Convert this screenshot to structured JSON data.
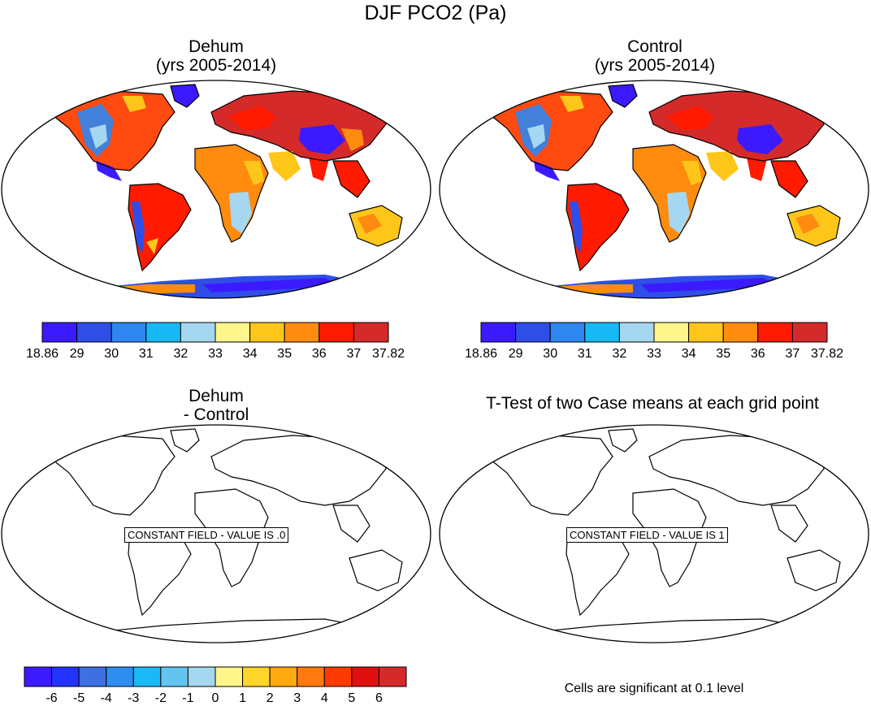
{
  "title": "DJF PCO2 (Pa)",
  "panels": [
    {
      "id": "dehum",
      "title_line1": "Dehum",
      "title_line2": "(yrs 2005-2014)"
    },
    {
      "id": "control",
      "title_line1": "Control",
      "title_line2": "(yrs 2005-2014)"
    },
    {
      "id": "difference",
      "title_line1": "Dehum",
      "title_line2": "- Control",
      "overlay": "CONSTANT FIELD - VALUE IS .0"
    },
    {
      "id": "ttest",
      "title_line1": "T-Test of two Case means at each grid point",
      "overlay": "CONSTANT FIELD - VALUE IS 1"
    }
  ],
  "colorbar_top": {
    "labels": [
      "18.86",
      "29",
      "30",
      "31",
      "32",
      "33",
      "34",
      "35",
      "36",
      "37",
      "37.82"
    ],
    "colors": [
      "#3c1aff",
      "#2f4ee8",
      "#2e86f0",
      "#16b9f5",
      "#a6d7f0",
      "#fff58a",
      "#ffc61a",
      "#ff8b0f",
      "#ff1a00",
      "#d42a2a"
    ]
  },
  "colorbar_bottom": {
    "labels": [
      "-6",
      "-5",
      "-4",
      "-3",
      "-2",
      "-1",
      "0",
      "1",
      "2",
      "3",
      "4",
      "5",
      "6"
    ],
    "colors": [
      "#3c1aff",
      "#2233ff",
      "#3f6fe0",
      "#2e8ef0",
      "#1ab9f5",
      "#63c4f0",
      "#a6d7f0",
      "#fff58a",
      "#ffd52a",
      "#ffaa10",
      "#ff7a0f",
      "#ff3a00",
      "#e01010",
      "#d42a2a"
    ]
  },
  "ttest_note": "Cells are significant at 0.1 level"
}
